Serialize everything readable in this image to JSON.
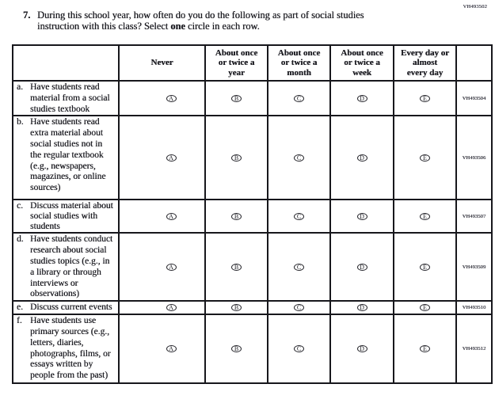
{
  "page_code": "VH493502",
  "question": {
    "number": "7.",
    "line1": "During this school year, how often do you do the following as part of social studies",
    "line2_before_bold": "instruction with this class? Select ",
    "line2_bold": "one",
    "line2_after": " circle in each row."
  },
  "table": {
    "columns": [
      "Never",
      "About once\nor twice a\nyear",
      "About once\nor twice a\nmonth",
      "About once\nor twice a\nweek",
      "Every day or\nalmost\nevery day"
    ],
    "option_letters": [
      "A",
      "B",
      "C",
      "D",
      "E"
    ],
    "rows": [
      {
        "label": "a.",
        "text": "Have students read\nmaterial from a social\nstudies textbook",
        "code": "VH493504"
      },
      {
        "label": "b.",
        "text": "Have students read\nextra material about\nsocial studies not in\nthe regular textbook\n(e.g., newspapers,\nmagazines, or online\nsources)",
        "code": "VH493506"
      },
      {
        "label": "c.",
        "text": "Discuss material about\nsocial studies with\nstudents",
        "code": "VH493507"
      },
      {
        "label": "d.",
        "text": "Have students conduct\nresearch about social\nstudies topics (e.g., in\na library or through\ninterviews or\nobservations)",
        "code": "VH493509"
      },
      {
        "label": "e.",
        "text": "Discuss current events",
        "code": "VH493510"
      },
      {
        "label": "f.",
        "text": "Have students use\nprimary sources (e.g.,\nletters, diaries,\nphotographs, films, or\nessays written by\npeople from the past)",
        "code": "VH493512"
      }
    ]
  }
}
